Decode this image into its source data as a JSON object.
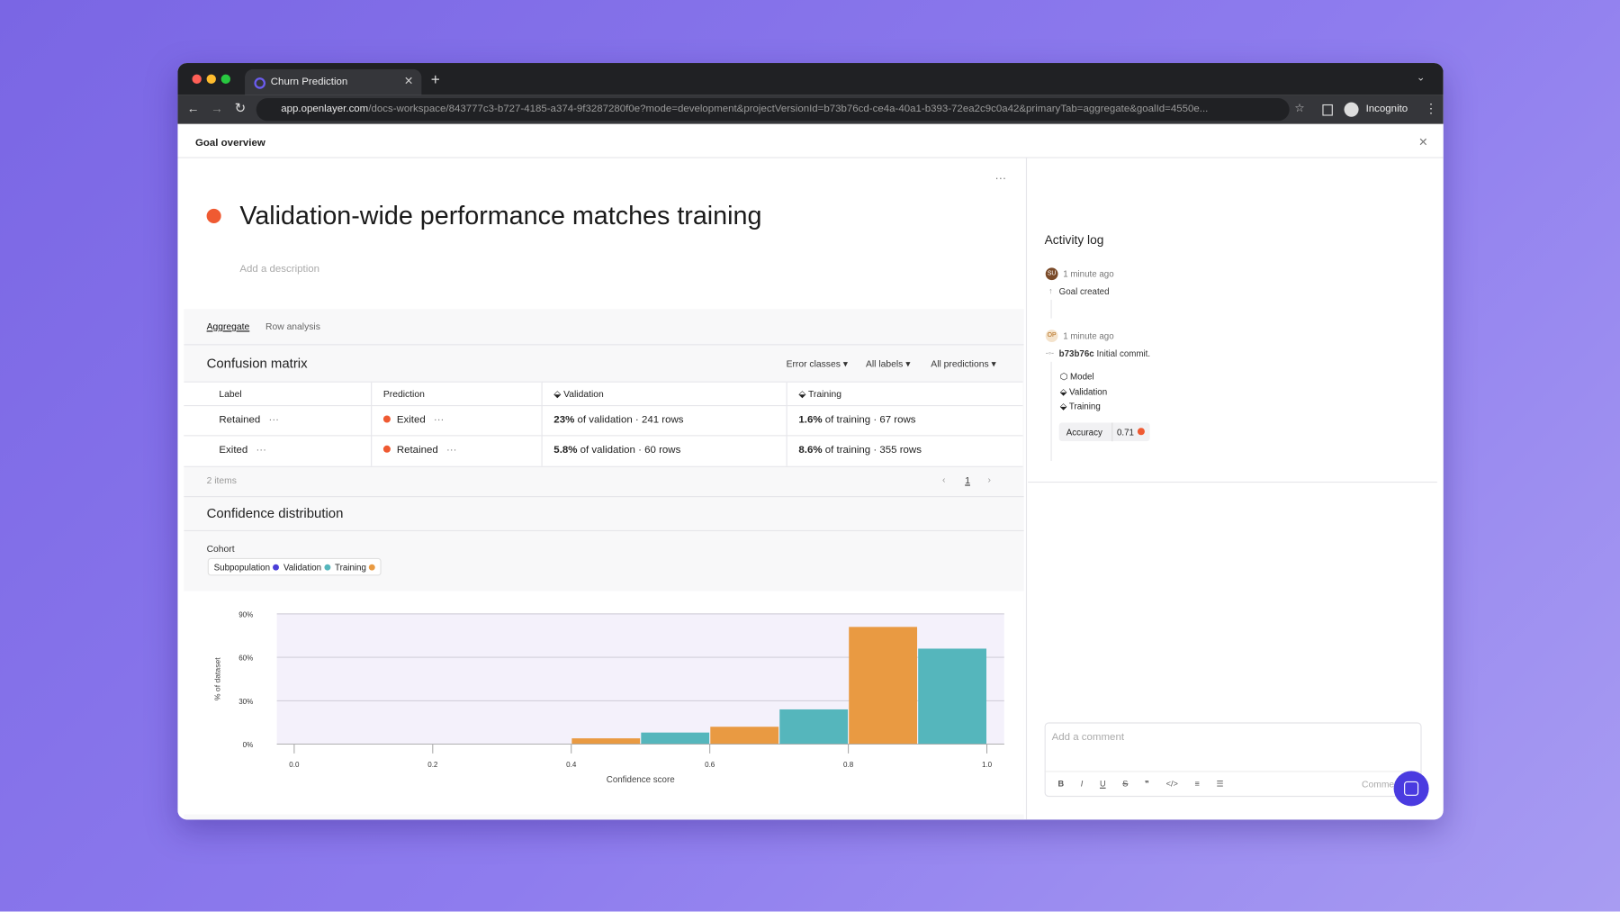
{
  "browser": {
    "tab_title": "Churn Prediction",
    "url_host": "app.openlayer.com",
    "url_path": "/docs-workspace/843777c3-b727-4185-a374-9f3287280f0e?mode=development&projectVersionId=b73b76cd-ce4a-40a1-b393-72ea2c9c0a42&primaryTab=aggregate&goalId=4550e...",
    "profile": "Incognito"
  },
  "panel": {
    "title": "Goal overview"
  },
  "goal": {
    "title": "Validation-wide performance matches training",
    "description_placeholder": "Add a description"
  },
  "tabs": [
    "Aggregate",
    "Row analysis"
  ],
  "confusion_matrix": {
    "title": "Confusion matrix",
    "filters": [
      "Error classes",
      "All labels",
      "All predictions"
    ],
    "columns": [
      "Label",
      "Prediction",
      "Validation",
      "Training"
    ],
    "rows": [
      {
        "label": "Retained",
        "prediction": "Exited",
        "validation_pct": "23%",
        "validation_rest": "of validation · 241 rows",
        "training_pct": "1.6%",
        "training_rest": "of training · 67 rows"
      },
      {
        "label": "Exited",
        "prediction": "Retained",
        "validation_pct": "5.8%",
        "validation_rest": "of validation · 60 rows",
        "training_pct": "8.6%",
        "training_rest": "of training · 355 rows"
      }
    ],
    "item_count": "2 items",
    "page": "1"
  },
  "confidence": {
    "title": "Confidence distribution",
    "cohort_label": "Cohort"
  },
  "chart_data": {
    "type": "histogram",
    "xlabel": "Confidence score",
    "ylabel": "% of dataset",
    "bins": [
      0.0,
      0.2,
      0.4,
      0.6,
      0.8,
      1.0
    ],
    "series": [
      {
        "name": "Subpopulation",
        "color": "#4b3fd8",
        "values": [
          null,
          null,
          null,
          null,
          null
        ]
      },
      {
        "name": "Validation",
        "color": "#55b6bc",
        "values": [
          0,
          0,
          8,
          24,
          66
        ]
      },
      {
        "name": "Training",
        "color": "#e99a42",
        "values": [
          0,
          0,
          4,
          12,
          81
        ]
      }
    ],
    "xlim": [
      -0.025,
      1.025
    ],
    "xticks": [
      {
        "value": 0,
        "label": "0.0"
      },
      0.2,
      0.4,
      0.6,
      0.8,
      {
        "value": 1,
        "label": "1.0"
      }
    ],
    "ylim": [
      0,
      90
    ],
    "yticks": [
      {
        "value": 0,
        "label": "0%"
      },
      {
        "value": 30,
        "label": "30%"
      },
      {
        "value": 60,
        "label": "60%"
      },
      {
        "value": 90,
        "label": "90%"
      }
    ],
    "grid": true
  },
  "activity_log": {
    "title": "Activity log",
    "entries": [
      {
        "avatar": "SU",
        "time": "1 minute ago",
        "text": "Goal created"
      },
      {
        "avatar": "OP",
        "time": "1 minute ago",
        "commit": "b73b76c",
        "text": "Initial commit.",
        "items": [
          "Model",
          "Validation",
          "Training"
        ],
        "metric_label": "Accuracy",
        "metric_value": "0.71"
      }
    ]
  },
  "comment": {
    "placeholder": "Add a comment",
    "button": "Comment"
  }
}
